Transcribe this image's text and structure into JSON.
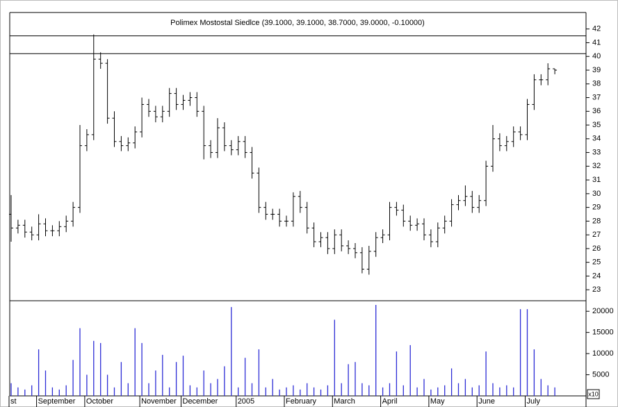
{
  "chart_data": {
    "type": "ohlc",
    "title": "Polimex Mostostal Siedlce (39.1000, 39.1000, 38.7000, 39.0000, -0.10000)",
    "categories": [
      "st",
      null,
      null,
      null,
      "September",
      null,
      null,
      null,
      null,
      null,
      null,
      "October",
      null,
      null,
      null,
      null,
      null,
      null,
      null,
      "November",
      null,
      null,
      null,
      null,
      null,
      "December",
      null,
      null,
      null,
      null,
      null,
      null,
      null,
      "2005",
      null,
      null,
      null,
      null,
      null,
      null,
      "February",
      null,
      null,
      null,
      null,
      null,
      null,
      "March",
      null,
      null,
      null,
      null,
      null,
      null,
      "April",
      null,
      null,
      null,
      null,
      null,
      null,
      "May",
      null,
      null,
      null,
      null,
      null,
      null,
      "June",
      null,
      null,
      null,
      null,
      null,
      null,
      "July",
      null,
      null,
      null,
      null
    ],
    "open": [
      28.5,
      27.5,
      27.7,
      27.2,
      27.0,
      27.8,
      27.3,
      27.3,
      27.6,
      28.0,
      29.0,
      33.5,
      34.3,
      39.8,
      39.5,
      35.5,
      33.8,
      33.5,
      33.7,
      34.5,
      36.5,
      36.0,
      35.6,
      36.0,
      37.3,
      36.5,
      36.8,
      37.0,
      36.0,
      33.5,
      33.0,
      34.8,
      33.5,
      33.2,
      33.8,
      33.0,
      31.5,
      29.0,
      28.5,
      28.5,
      28.0,
      28.0,
      29.8,
      29.0,
      27.5,
      26.5,
      26.8,
      26.0,
      27.0,
      26.2,
      26.0,
      25.7,
      24.5,
      25.8,
      26.8,
      27.0,
      29.0,
      28.8,
      28.0,
      27.7,
      27.8,
      27.0,
      26.5,
      27.5,
      28.0,
      29.2,
      29.5,
      29.8,
      29.0,
      29.5,
      32.0,
      34.0,
      33.5,
      33.8,
      34.5,
      34.3,
      36.5,
      38.3,
      38.3,
      39.1
    ],
    "high": [
      29.9,
      28.1,
      28.1,
      27.6,
      28.5,
      28.2,
      27.7,
      28.0,
      28.4,
      29.4,
      35.0,
      34.7,
      41.6,
      40.3,
      39.8,
      36.0,
      34.2,
      34.1,
      34.9,
      37.0,
      36.9,
      36.4,
      36.4,
      37.7,
      37.7,
      37.2,
      37.4,
      37.4,
      36.4,
      33.9,
      35.5,
      35.2,
      33.9,
      34.2,
      34.2,
      33.4,
      31.9,
      29.4,
      28.9,
      28.9,
      28.4,
      30.1,
      30.2,
      29.4,
      27.9,
      27.2,
      27.2,
      27.4,
      27.4,
      26.6,
      26.4,
      26.1,
      26.2,
      27.2,
      27.4,
      29.4,
      29.4,
      29.2,
      28.4,
      28.2,
      28.2,
      27.4,
      27.9,
      28.4,
      29.6,
      29.9,
      30.6,
      30.2,
      29.9,
      32.4,
      35.0,
      34.4,
      34.2,
      34.9,
      34.9,
      36.9,
      38.7,
      38.7,
      39.5,
      39.1
    ],
    "low": [
      26.5,
      27.1,
      26.8,
      26.6,
      26.6,
      26.9,
      26.9,
      26.9,
      27.2,
      27.6,
      28.6,
      33.1,
      33.9,
      39.1,
      35.1,
      33.4,
      33.1,
      33.1,
      33.3,
      34.1,
      35.6,
      35.2,
      35.2,
      35.6,
      36.1,
      36.1,
      36.4,
      35.6,
      32.5,
      32.6,
      32.6,
      33.1,
      32.8,
      32.8,
      32.6,
      31.1,
      28.6,
      28.1,
      28.1,
      27.6,
      27.6,
      27.6,
      28.6,
      27.1,
      26.1,
      26.1,
      25.6,
      25.6,
      25.8,
      25.6,
      25.3,
      24.2,
      24.1,
      25.4,
      26.4,
      26.6,
      28.4,
      27.6,
      27.3,
      27.3,
      26.6,
      26.1,
      26.1,
      27.1,
      27.6,
      28.8,
      29.1,
      28.6,
      28.6,
      29.1,
      31.6,
      33.1,
      33.1,
      33.4,
      33.9,
      33.9,
      36.1,
      37.9,
      37.9,
      38.7
    ],
    "close": [
      27.5,
      27.7,
      27.2,
      27.0,
      27.8,
      27.3,
      27.3,
      27.6,
      28.0,
      29.0,
      33.5,
      34.3,
      39.8,
      39.5,
      35.5,
      33.8,
      33.5,
      33.7,
      34.5,
      36.5,
      36.0,
      35.6,
      36.0,
      37.3,
      36.5,
      36.8,
      37.0,
      36.0,
      33.5,
      33.0,
      34.8,
      33.5,
      33.2,
      33.8,
      33.0,
      31.5,
      29.0,
      28.5,
      28.5,
      28.0,
      28.0,
      29.8,
      29.0,
      27.5,
      26.5,
      26.8,
      26.0,
      27.0,
      26.2,
      26.0,
      25.7,
      24.5,
      25.8,
      26.8,
      27.0,
      29.0,
      28.8,
      28.0,
      27.7,
      27.8,
      27.0,
      26.5,
      27.5,
      28.0,
      29.2,
      29.5,
      29.8,
      29.0,
      29.5,
      32.0,
      34.0,
      33.5,
      33.8,
      34.5,
      34.3,
      36.5,
      38.3,
      38.3,
      39.1,
      39.0
    ],
    "volume": [
      3000,
      2000,
      1500,
      2500,
      11000,
      6000,
      2000,
      1500,
      2500,
      8500,
      16000,
      5000,
      13000,
      12500,
      5000,
      2000,
      8000,
      3000,
      16000,
      12500,
      3000,
      6000,
      9700,
      2000,
      8000,
      9500,
      2500,
      2000,
      6000,
      3000,
      4000,
      7000,
      21000,
      2000,
      9000,
      3000,
      11000,
      2000,
      4000,
      1500,
      2000,
      2500,
      1500,
      3000,
      2000,
      1500,
      2500,
      18000,
      3000,
      7500,
      8000,
      3000,
      2500,
      21500,
      2000,
      3000,
      10500,
      2500,
      12000,
      2000,
      4000,
      1500,
      2000,
      2500,
      6500,
      3000,
      4000,
      2000,
      2500,
      10500,
      3000,
      2000,
      2500,
      2000,
      20500,
      20500,
      11000,
      4000,
      2500,
      2000
    ],
    "ylim": [
      22.2,
      43.2
    ],
    "yticks": [
      23,
      24,
      25,
      26,
      27,
      28,
      29,
      30,
      31,
      32,
      33,
      34,
      35,
      36,
      37,
      38,
      39,
      40,
      41,
      42
    ],
    "volume_ylim": [
      0,
      22000
    ],
    "volume_yticks": [
      5000,
      10000,
      15000,
      20000
    ],
    "volume_unit_label": "x10",
    "hlines": [
      41.5,
      40.2
    ],
    "color": "#000000",
    "volume_color": "#2b2bd6"
  }
}
